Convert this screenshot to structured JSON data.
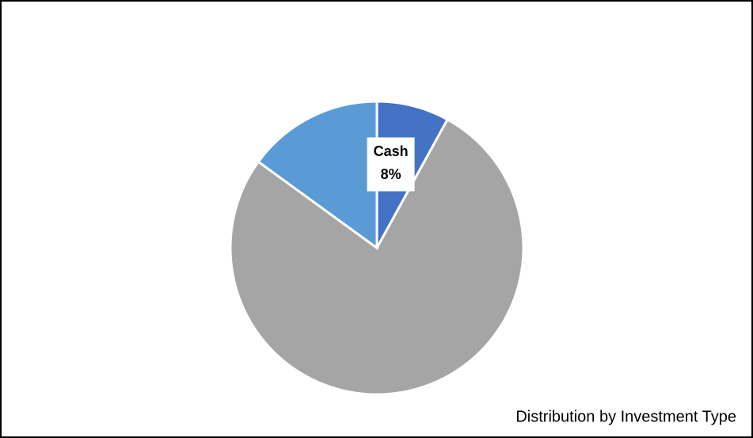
{
  "chart_data": {
    "type": "pie",
    "title": "Distribution by Investment Type",
    "categories": [
      "Cash",
      null,
      null
    ],
    "values": [
      8,
      77,
      15
    ],
    "value_labels": [
      "8%",
      null,
      null
    ],
    "colors": [
      "#4472c4",
      "#a5a5a5",
      "#5b9bd5"
    ]
  }
}
